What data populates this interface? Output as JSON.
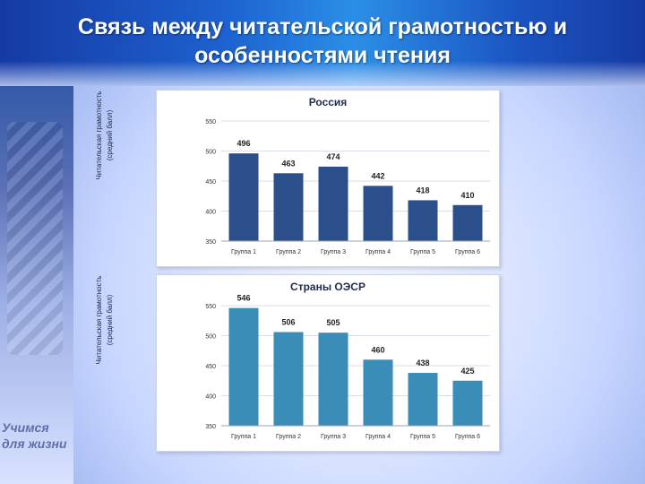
{
  "slide": {
    "title_line1": "Связь между читательской грамотностью  и",
    "title_line2": "особенностями чтения",
    "slogan_line1": "Учимся",
    "slogan_line2": "для жизни"
  },
  "colors": {
    "russia_bar": "#2b4f8a",
    "oecd_bar": "#3a8db6",
    "grid": "#d9dde7",
    "axis_text": "#333333"
  },
  "chart_data": [
    {
      "type": "bar",
      "title": "Россия",
      "ylabel_line1": "Читательская грамотность",
      "ylabel_line2": "(средний балл)",
      "categories": [
        "Группа 1",
        "Группа 2",
        "Группа 3",
        "Группа 4",
        "Группа 5",
        "Группа 6"
      ],
      "values": [
        496,
        463,
        474,
        442,
        418,
        410
      ],
      "ylim": [
        350,
        550
      ],
      "yticks": [
        350,
        400,
        450,
        500,
        550
      ],
      "grid": true
    },
    {
      "type": "bar",
      "title": "Страны ОЭСР",
      "ylabel_line1": "Читательская грамотность",
      "ylabel_line2": "(средний балл)",
      "categories": [
        "Группа 1",
        "Группа 2",
        "Группа 3",
        "Группа 4",
        "Группа 5",
        "Группа 6"
      ],
      "values": [
        546,
        506,
        505,
        460,
        438,
        425
      ],
      "ylim": [
        350,
        550
      ],
      "yticks": [
        350,
        400,
        450,
        500,
        550
      ],
      "grid": true
    }
  ]
}
